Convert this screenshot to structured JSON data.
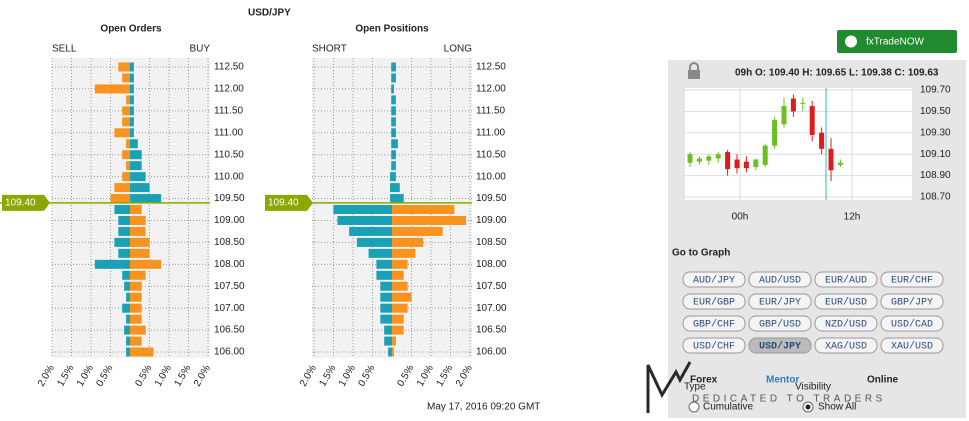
{
  "pair": "USD/JPY",
  "date": "May 17, 2016 09:20 GMT",
  "current": {
    "value": 109.4,
    "label": "109.40"
  },
  "price_ticks": [
    {
      "value": 106,
      "label": "106.00"
    },
    {
      "value": 106.5,
      "label": "106.50"
    },
    {
      "value": 107,
      "label": "107.00"
    },
    {
      "value": 107.5,
      "label": "107.50"
    },
    {
      "value": 108,
      "label": "108.00"
    },
    {
      "value": 108.5,
      "label": "108.50"
    },
    {
      "value": 109,
      "label": "109.00"
    },
    {
      "value": 109.5,
      "label": "109.50"
    },
    {
      "value": 110,
      "label": "110.00"
    },
    {
      "value": 110.5,
      "label": "110.50"
    },
    {
      "value": 111,
      "label": "111.00"
    },
    {
      "value": 111.5,
      "label": "111.50"
    },
    {
      "value": 112,
      "label": "112.00"
    },
    {
      "value": 112.5,
      "label": "112.50"
    }
  ],
  "pct_ticks_left": [
    {
      "value": 2,
      "label": "2.0%"
    },
    {
      "value": 1.5,
      "label": "1.5%"
    },
    {
      "value": 1,
      "label": "1.0%"
    },
    {
      "value": 0.5,
      "label": "0.5%"
    }
  ],
  "pct_ticks_right": [
    {
      "value": 0.5,
      "label": "0.5%"
    },
    {
      "value": 1,
      "label": "1.0%"
    },
    {
      "value": 1.5,
      "label": "1.5%"
    },
    {
      "value": 2,
      "label": "2.0%"
    }
  ],
  "levels": [
    106,
    106.25,
    106.5,
    106.75,
    107,
    107.25,
    107.5,
    107.75,
    108,
    108.25,
    108.5,
    108.75,
    109,
    109.25,
    109.5,
    109.75,
    110,
    110.25,
    110.5,
    110.75,
    111,
    111.25,
    111.5,
    111.75,
    112,
    112.25,
    112.5
  ],
  "charts": [
    {
      "type": "bar",
      "title": "Open Orders",
      "colors_above": [
        "#f7931e",
        "#1aa1b5"
      ],
      "colors_below": [
        "#1aa1b5",
        "#f7931e"
      ],
      "series": [
        {
          "name": "SELL",
          "values": [
            0.1,
            0.1,
            0.15,
            0.1,
            0.2,
            0.1,
            0.15,
            0.2,
            0.9,
            0.3,
            0.4,
            0.3,
            0.3,
            0.4,
            0.5,
            0.4,
            0.2,
            0.1,
            0.2,
            0.1,
            0.4,
            0.2,
            0.2,
            0.1,
            0.9,
            0.2,
            0.3
          ]
        },
        {
          "name": "BUY",
          "values": [
            0.6,
            0.3,
            0.4,
            0.3,
            0.3,
            0.3,
            0.3,
            0.4,
            0.8,
            0.5,
            0.5,
            0.4,
            0.4,
            0.3,
            0.8,
            0.5,
            0.4,
            0.3,
            0.3,
            0.2,
            0.1,
            0.1,
            0.1,
            0.1,
            0.1,
            0.1,
            0.1
          ]
        }
      ]
    },
    {
      "type": "bar",
      "title": "Open Positions",
      "colors_above": [
        "#1aa1b5",
        "#1aa1b5"
      ],
      "colors_below": [
        "#1aa1b5",
        "#f7931e"
      ],
      "series": [
        {
          "name": "SHORT",
          "values": [
            0.1,
            0.2,
            0.2,
            0.3,
            0.3,
            0.3,
            0.3,
            0.4,
            0.4,
            0.6,
            0.9,
            1.1,
            1.4,
            1.5,
            0.05,
            0.05,
            0.05,
            0.02,
            0.02,
            0.02,
            0.02,
            0.02,
            0.02,
            0.02,
            0.02,
            0.02,
            0.02
          ]
        },
        {
          "name": "LONG",
          "values": [
            0.05,
            0.1,
            0.3,
            0.3,
            0.4,
            0.5,
            0.4,
            0.3,
            0.4,
            0.6,
            0.8,
            1.3,
            1.9,
            1.6,
            0.3,
            0.2,
            0.1,
            0.1,
            0.1,
            0.15,
            0.1,
            0.1,
            0.1,
            0.1,
            0.05,
            0.1,
            0.1
          ]
        }
      ]
    }
  ],
  "candle_chart": {
    "type": "candlestick",
    "header": "09h O: 109.40 H: 109.65 L: 109.38 C: 109.63",
    "ylim": [
      108.7,
      109.7
    ],
    "yticks": [
      {
        "value": 108.7,
        "label": "108.70"
      },
      {
        "value": 108.9,
        "label": "108.90"
      },
      {
        "value": 109.1,
        "label": "109.10"
      },
      {
        "value": 109.3,
        "label": "109.30"
      },
      {
        "value": 109.5,
        "label": "109.50"
      },
      {
        "value": 109.7,
        "label": "109.70"
      }
    ],
    "xlabels": [
      "00h",
      "12h"
    ],
    "up_color": "#6cbf1e",
    "down_color": "#e01b1b",
    "candles": [
      [
        109.02,
        109.12,
        108.98,
        109.1
      ],
      [
        109.03,
        109.08,
        109,
        109.06
      ],
      [
        109.04,
        109.1,
        109,
        109.08
      ],
      [
        109.06,
        109.12,
        109.02,
        109.1
      ],
      [
        109.12,
        109.14,
        108.9,
        108.96
      ],
      [
        109.05,
        109.1,
        108.92,
        108.97
      ],
      [
        109.03,
        109.08,
        108.93,
        108.97
      ],
      [
        108.98,
        109.06,
        108.95,
        109.05
      ],
      [
        109,
        109.2,
        108.98,
        109.18
      ],
      [
        109.18,
        109.45,
        109.15,
        109.42
      ],
      [
        109.38,
        109.63,
        109.35,
        109.55
      ],
      [
        109.62,
        109.66,
        109.45,
        109.5
      ],
      [
        109.58,
        109.63,
        109.5,
        109.58
      ],
      [
        109.55,
        109.6,
        109.22,
        109.28
      ],
      [
        109.3,
        109.35,
        109.1,
        109.15
      ],
      [
        109.15,
        109.25,
        108.85,
        108.95
      ],
      [
        109,
        109.05,
        108.98,
        109.02
      ]
    ]
  },
  "trade_button": "fxTradeNOW",
  "goto": {
    "title": "Go to Graph",
    "pairs": [
      "AUD/JPY",
      "AUD/USD",
      "EUR/AUD",
      "EUR/CHF",
      "EUR/GBP",
      "EUR/JPY",
      "EUR/USD",
      "GBP/JPY",
      "GBP/CHF",
      "GBP/USD",
      "NZD/USD",
      "USD/CAD",
      "USD/CHF",
      "USD/JPY",
      "XAG/USD",
      "XAU/USD"
    ],
    "selected": "USD/JPY"
  },
  "options": {
    "type_label": "Type",
    "type_value": "Cumulative",
    "visibility_label": "Visibility",
    "visibility_value": "Show All"
  },
  "logo": {
    "part1": "Forex",
    "part2": "Mentor",
    "part3": "Online",
    "tagline": "DEDICATED TO TRADERS"
  }
}
